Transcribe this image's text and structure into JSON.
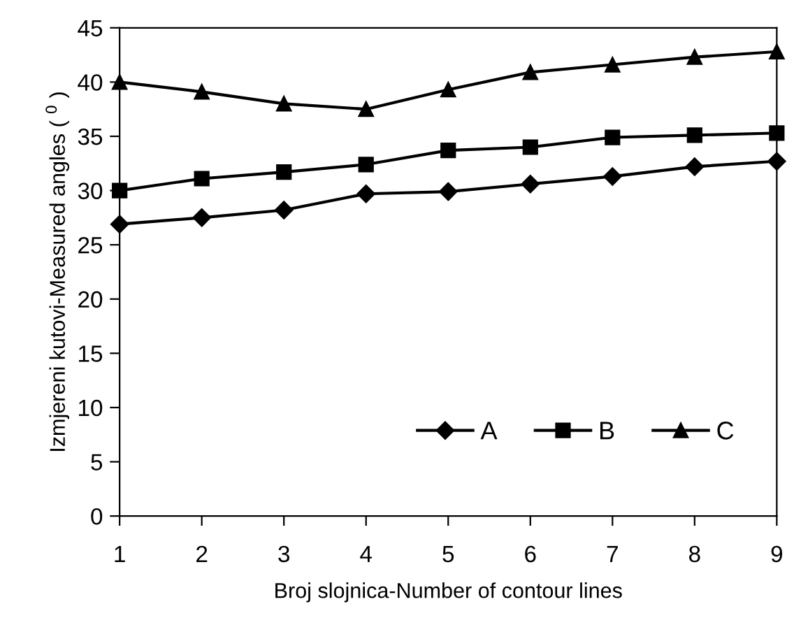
{
  "chart_data": {
    "type": "line",
    "xlabel": "Broj slojnica-Number of contour lines",
    "ylabel": "Izmjereni kutovi-Measured angles ( $^{0}$ )",
    "x": [
      1,
      2,
      3,
      4,
      5,
      6,
      7,
      8,
      9
    ],
    "series": [
      {
        "name": "A",
        "color": "#000000",
        "marker": "diamond",
        "values": [
          26.9,
          27.5,
          28.2,
          29.7,
          29.9,
          30.6,
          31.3,
          32.2,
          32.7
        ]
      },
      {
        "name": "B",
        "color": "#000000",
        "marker": "square",
        "values": [
          30.0,
          31.1,
          31.7,
          32.4,
          33.7,
          34.0,
          34.9,
          35.1,
          35.3
        ]
      },
      {
        "name": "C",
        "color": "#000000",
        "marker": "triangle",
        "values": [
          40.0,
          39.1,
          38.0,
          37.5,
          39.3,
          40.9,
          41.6,
          42.3,
          42.8
        ]
      }
    ],
    "xlim": [
      1,
      9
    ],
    "xticks": [
      1,
      2,
      3,
      4,
      5,
      6,
      7,
      8,
      9
    ],
    "ylim": [
      0,
      45
    ],
    "yticks": [
      0,
      5,
      10,
      15,
      20,
      25,
      30,
      35,
      40,
      45
    ],
    "grid": false,
    "legend": "bottom right",
    "line_style": "solid"
  }
}
